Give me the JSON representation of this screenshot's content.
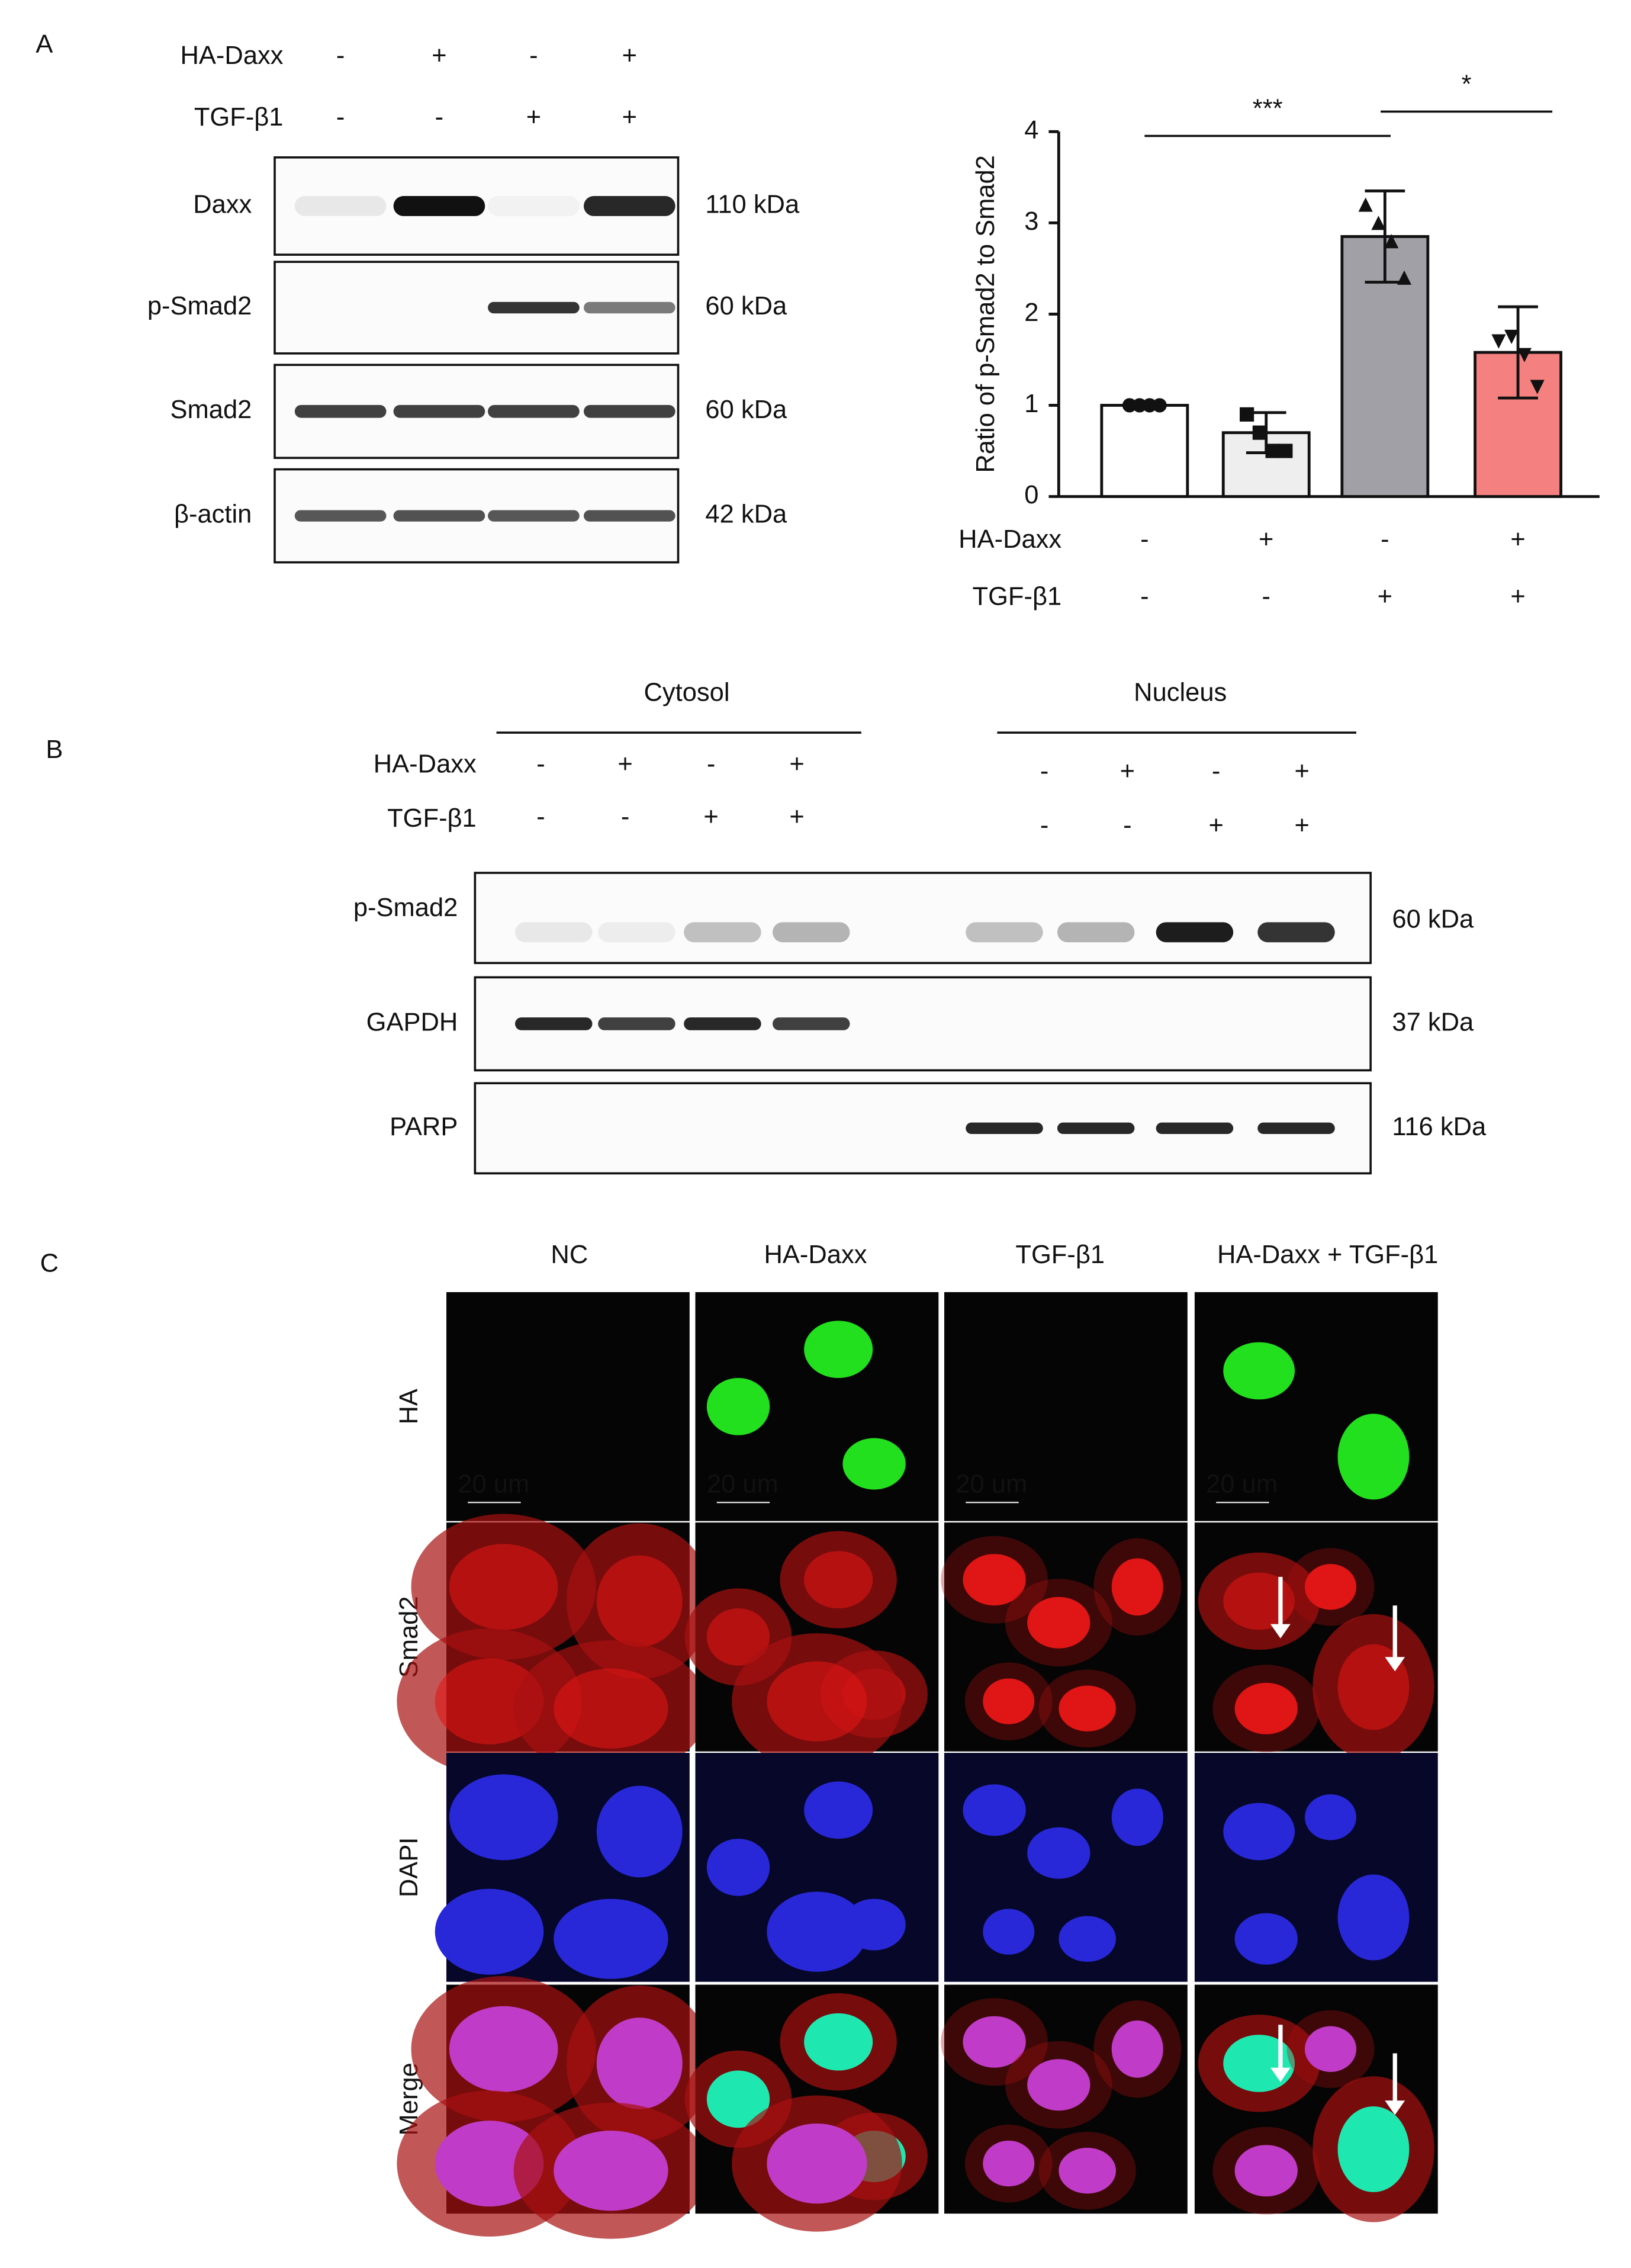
{
  "panel_a": {
    "label": "A",
    "conditions": [
      {
        "name": "HA-Daxx",
        "marks": [
          "-",
          "+",
          "-",
          "+"
        ]
      },
      {
        "name": "TGF-β1",
        "marks": [
          "-",
          "-",
          "+",
          "+"
        ]
      }
    ],
    "blots": [
      {
        "name": "Daxx",
        "size": "110 kDa"
      },
      {
        "name": "p-Smad2",
        "size": "60 kDa"
      },
      {
        "name": "Smad2",
        "size": "60 kDa"
      },
      {
        "name": "β-actin",
        "size": "42 kDa"
      }
    ]
  },
  "chart_data": {
    "type": "bar",
    "y_label": "Ratio of p-Smad2 to Smad2",
    "categories": [
      null,
      null,
      null,
      null
    ],
    "values": [
      1,
      0.7,
      2.85,
      1.58
    ],
    "errors": [
      0,
      0.22,
      0.5,
      0.5
    ],
    "points": [
      [
        1,
        1,
        1,
        1
      ],
      [
        0.9,
        0.7,
        0.5,
        0.5
      ],
      [
        3.2,
        3.0,
        2.8,
        2.4
      ],
      [
        1.7,
        1.75,
        1.55,
        1.2
      ]
    ],
    "colors": [
      "#ffffff",
      "#eeeeee",
      "#a0a0a6",
      "#f48080"
    ],
    "ylim": [
      0,
      4
    ],
    "yticks": [
      0,
      1,
      2,
      3,
      4
    ],
    "significance": [
      "***",
      "*"
    ],
    "conditions": [
      {
        "name": "HA-Daxx",
        "marks": [
          "-",
          "+",
          "-",
          "+"
        ]
      },
      {
        "name": "TGF-β1",
        "marks": [
          "-",
          "-",
          "+",
          "+"
        ]
      }
    ]
  },
  "panel_b": {
    "label": "B",
    "groups": [
      "Cytosol",
      "Nucleus"
    ],
    "conditions": [
      {
        "name": "HA-Daxx",
        "marks": [
          "-",
          "+",
          "-",
          "+",
          "-",
          "+",
          "-",
          "+"
        ]
      },
      {
        "name": "TGF-β1",
        "marks": [
          "-",
          "-",
          "+",
          "+",
          "-",
          "-",
          "+",
          "+"
        ]
      }
    ],
    "blots": [
      {
        "name": "p-Smad2",
        "size": "60 kDa"
      },
      {
        "name": "GAPDH",
        "size": "37 kDa"
      },
      {
        "name": "PARP",
        "size": "116 kDa"
      }
    ]
  },
  "panel_c": {
    "label": "C",
    "columns": [
      "NC",
      "HA-Daxx",
      "TGF-β1",
      "HA-Daxx + TGF-β1"
    ],
    "rows": [
      "HA",
      "Smad2",
      "DAPI",
      "Merge"
    ],
    "scale_bar": "20 um"
  }
}
